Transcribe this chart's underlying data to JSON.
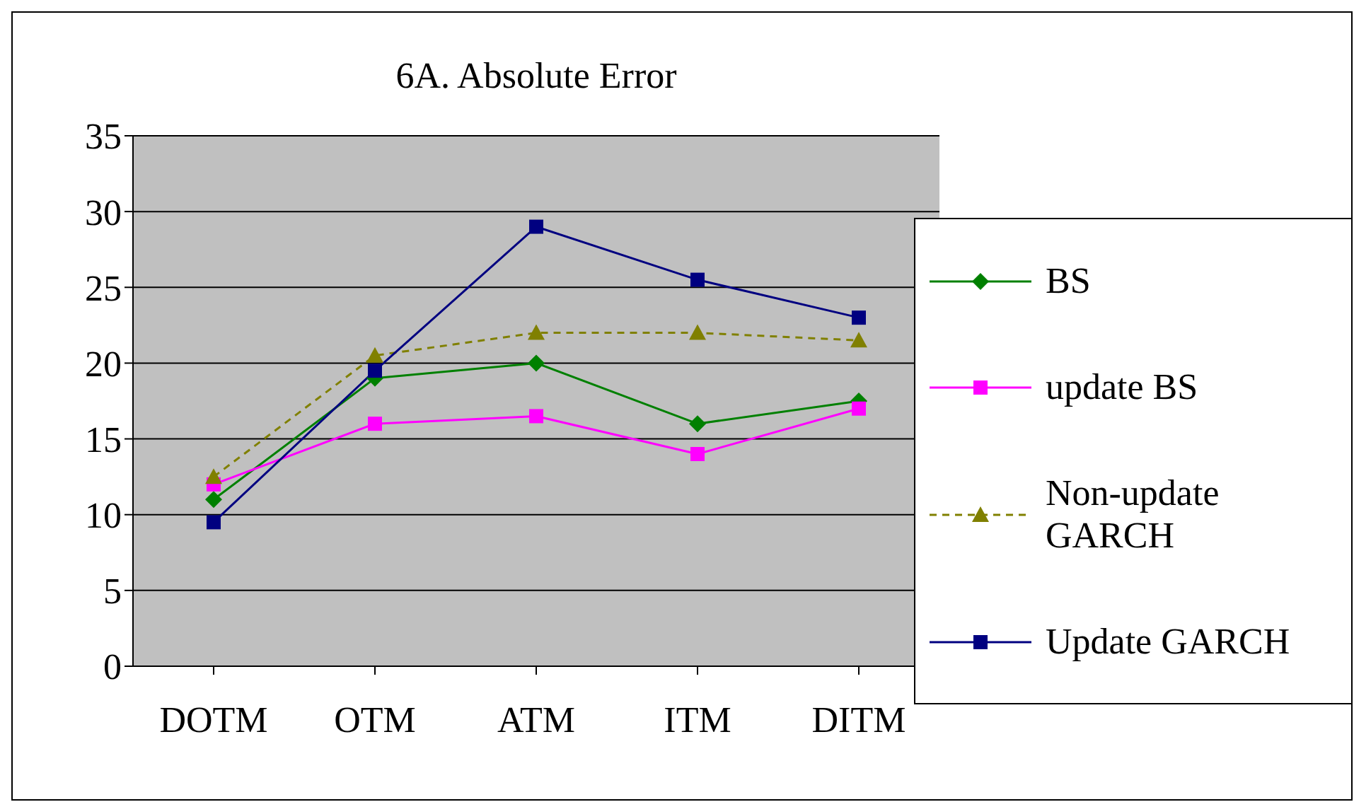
{
  "chart_data": {
    "type": "line",
    "title": "6A. Absolute Error",
    "categories": [
      "DOTM",
      "OTM",
      "ATM",
      "ITM",
      "DITM"
    ],
    "series": [
      {
        "name": "BS",
        "color": "#008000",
        "values": [
          11,
          19,
          20,
          16,
          17.5
        ],
        "marker": "diamond",
        "line_style": "solid"
      },
      {
        "name": "update BS",
        "color": "#ff00ff",
        "values": [
          12,
          16,
          16.5,
          14,
          17
        ],
        "marker": "square",
        "line_style": "solid"
      },
      {
        "name": "Non-update GARCH",
        "color": "#808000",
        "values": [
          12.5,
          20.5,
          22,
          22,
          21.5
        ],
        "marker": "triangle",
        "line_style": "dashed"
      },
      {
        "name": "Update GARCH",
        "color": "#000080",
        "values": [
          9.5,
          19.5,
          29,
          25.5,
          23
        ],
        "marker": "square",
        "line_style": "solid"
      }
    ],
    "ylim": [
      0,
      35
    ],
    "yticks": [
      0,
      5,
      10,
      15,
      20,
      25,
      30,
      35
    ],
    "grid": "y",
    "legend": "right"
  }
}
